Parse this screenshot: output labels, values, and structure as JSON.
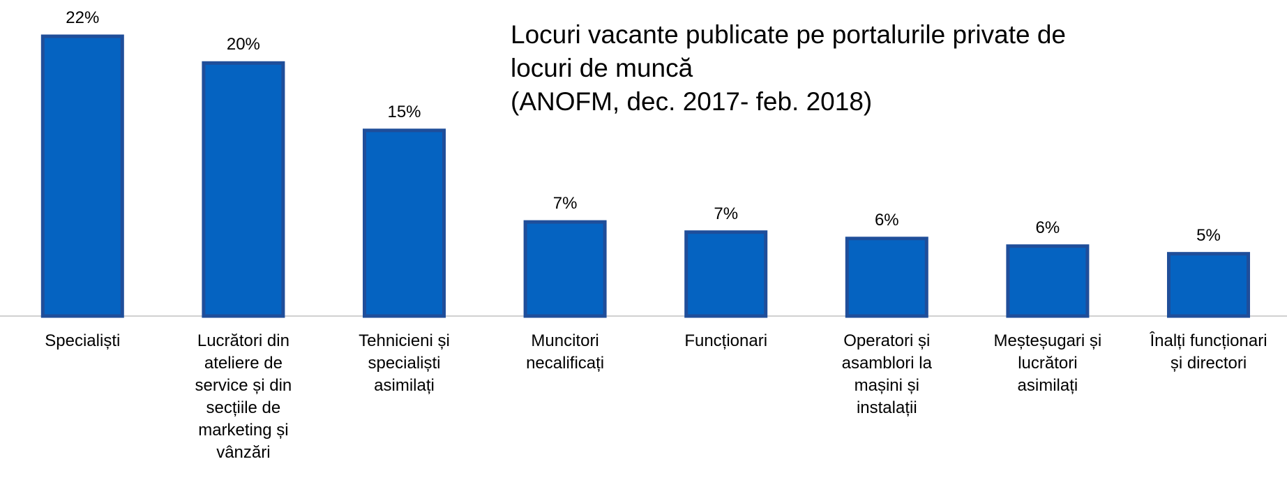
{
  "chart_data": {
    "type": "bar",
    "title": "Locuri vacante publicate pe portalurile private de\nlocuri de muncă\n(ANOFM, dec. 2017- feb. 2018)",
    "categories": [
      "Specialiști",
      "Lucrători din\nateliere de\nservice și din\nsecțiile de\nmarketing și\nvânzări",
      "Tehnicieni și\nspecialiști\nasimilați",
      "Muncitori\nnecalificați",
      "Funcționari",
      "Operatori și\nasamblori la\nmașini și\ninstalații",
      "Meșteșugari și\nlucrători\nasimilați",
      "Înalți funcționari\nși directori"
    ],
    "values": [
      22.0,
      19.9,
      14.6,
      7.4,
      6.6,
      6.1,
      5.5,
      4.9
    ],
    "value_labels": [
      "22%",
      "20%",
      "15%",
      "7%",
      "7%",
      "6%",
      "6%",
      "5%"
    ],
    "color": "#0563c1"
  }
}
